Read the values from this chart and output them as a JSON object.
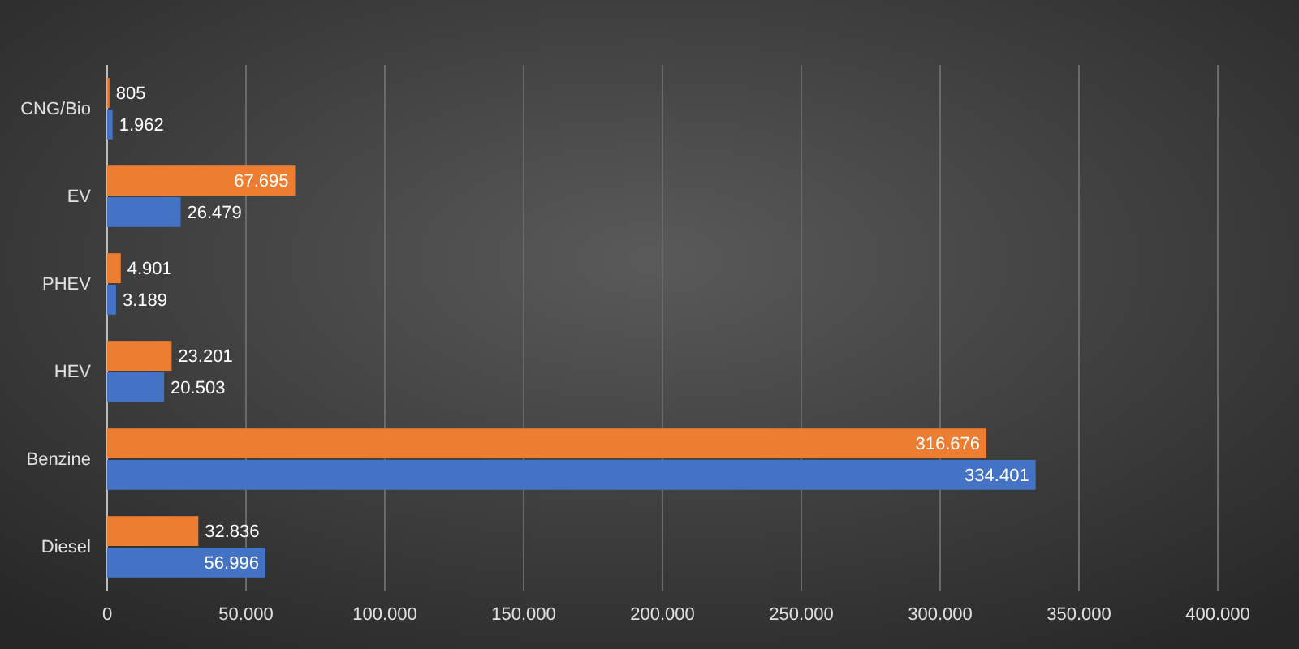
{
  "chart_data": {
    "type": "bar",
    "orientation": "horizontal",
    "categories": [
      "CNG/Bio",
      "EV",
      "PHEV",
      "HEV",
      "Benzine",
      "Diesel"
    ],
    "series": [
      {
        "color": "#ed7d31",
        "values": [
          805,
          67695,
          4901,
          23201,
          316676,
          32836
        ],
        "value_labels": [
          "805",
          "67.695",
          "4.901",
          "23.201",
          "316.676",
          "32.836"
        ]
      },
      {
        "color": "#4472c4",
        "values": [
          1962,
          26479,
          3189,
          20503,
          334401,
          56996
        ],
        "value_labels": [
          "1.962",
          "26.479",
          "3.189",
          "20.503",
          "334.401",
          "56.996"
        ]
      }
    ],
    "xlim": [
      0,
      400000
    ],
    "xticks": [
      0,
      {
        "value": 50000,
        "label": "50.000"
      },
      {
        "value": 100000,
        "label": "100.000"
      },
      {
        "value": 150000,
        "label": "150.000"
      },
      {
        "value": 200000,
        "label": "200.000"
      },
      {
        "value": 250000,
        "label": "250.000"
      },
      {
        "value": 300000,
        "label": "300.000"
      },
      {
        "value": 350000,
        "label": "350.000"
      },
      {
        "value": 400000,
        "label": "400.000"
      }
    ],
    "grid": "x"
  }
}
